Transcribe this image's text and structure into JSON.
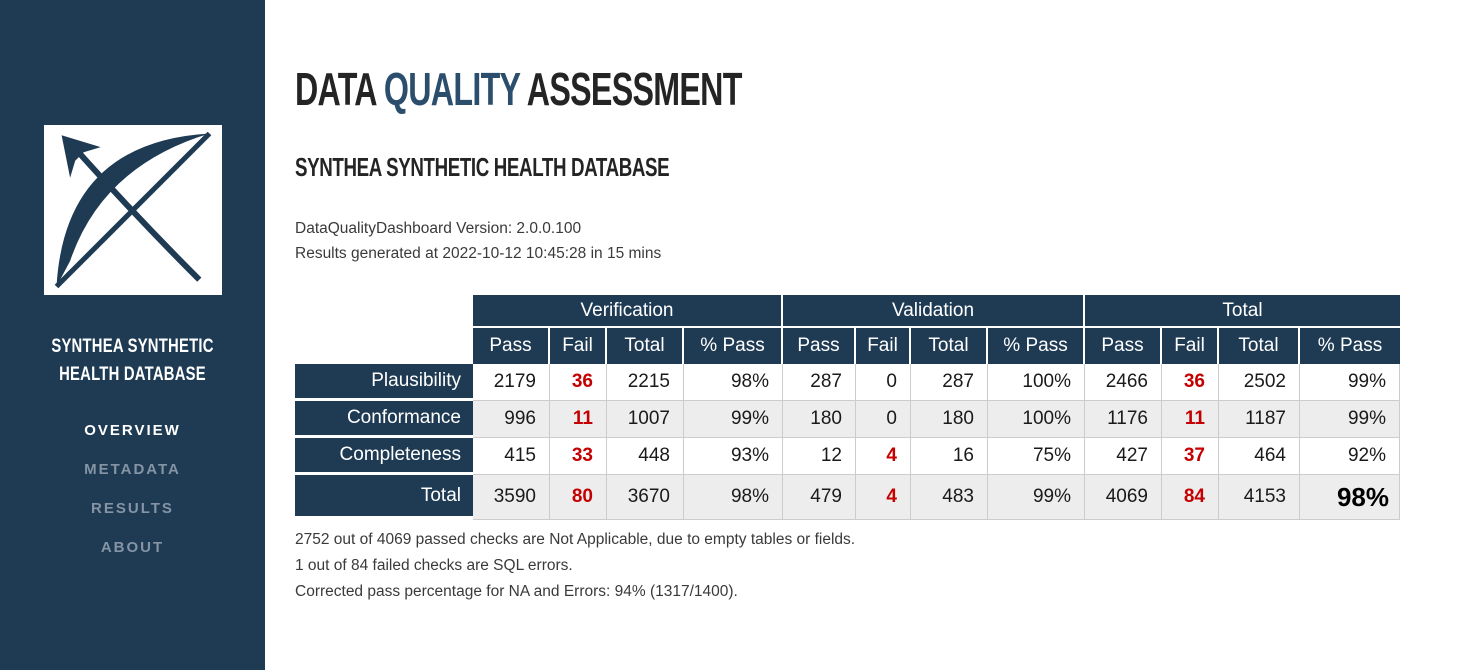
{
  "colors": {
    "sidebar_bg": "#1f3b54",
    "accent_navy": "#2b4e6d",
    "fail_red": "#c40000",
    "row_alt": "#ededed",
    "cell_border": "#cccccc",
    "nav_inactive": "#8494a4"
  },
  "sidebar": {
    "logo_icon": "bow-arrow-logo",
    "title": "SYNTHEA SYNTHETIC HEALTH DATABASE",
    "nav": [
      {
        "label": "OVERVIEW",
        "active": true
      },
      {
        "label": "METADATA",
        "active": false
      },
      {
        "label": "RESULTS",
        "active": false
      },
      {
        "label": "ABOUT",
        "active": false
      }
    ]
  },
  "header": {
    "title_part1": "DATA ",
    "title_part2": "QUALITY",
    "title_part3": " ASSESSMENT",
    "subtitle": "SYNTHEA SYNTHETIC HEALTH DATABASE",
    "version_line": "DataQualityDashboard Version: 2.0.0.100",
    "generated_line": "Results generated at 2022-10-12 10:45:28 in 15 mins"
  },
  "table": {
    "groups": [
      "Verification",
      "Validation",
      "Total"
    ],
    "sub_headers": [
      "Pass",
      "Fail",
      "Total",
      "% Pass"
    ],
    "rows": [
      {
        "label": "Plausibility",
        "is_total": false,
        "cells": [
          "2179",
          "36",
          "2215",
          "98%",
          "287",
          "0",
          "287",
          "100%",
          "2466",
          "36",
          "2502",
          "99%"
        ]
      },
      {
        "label": "Conformance",
        "is_total": false,
        "cells": [
          "996",
          "11",
          "1007",
          "99%",
          "180",
          "0",
          "180",
          "100%",
          "1176",
          "11",
          "1187",
          "99%"
        ]
      },
      {
        "label": "Completeness",
        "is_total": false,
        "cells": [
          "415",
          "33",
          "448",
          "93%",
          "12",
          "4",
          "16",
          "75%",
          "427",
          "37",
          "464",
          "92%"
        ]
      },
      {
        "label": "Total",
        "is_total": true,
        "cells": [
          "3590",
          "80",
          "3670",
          "98%",
          "479",
          "4",
          "483",
          "99%",
          "4069",
          "84",
          "4153",
          "98%"
        ]
      }
    ]
  },
  "notes": [
    "2752 out of 4069 passed checks are Not Applicable, due to empty tables or fields.",
    "1 out of 84 failed checks are SQL errors.",
    "Corrected pass percentage for NA and Errors: 94% (1317/1400)."
  ]
}
